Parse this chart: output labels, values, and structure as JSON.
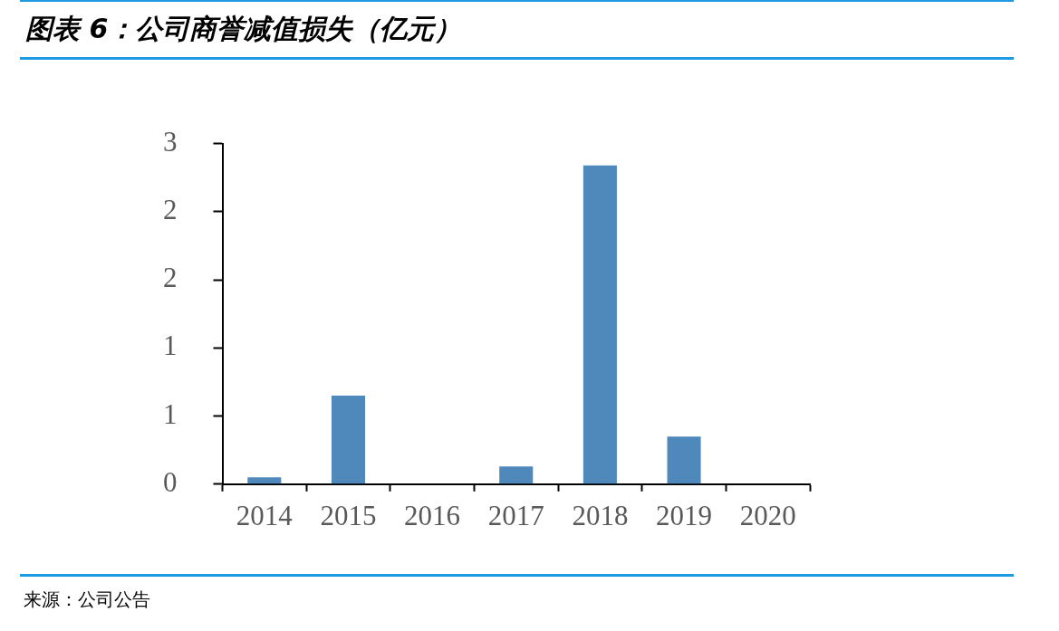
{
  "chart_data": {
    "type": "bar",
    "title": "图表 6：公司商誉减值损失（亿元）",
    "categories": [
      "2014",
      "2015",
      "2016",
      "2017",
      "2018",
      "2019",
      "2020"
    ],
    "values": [
      0.05,
      0.65,
      0,
      0.13,
      2.34,
      0.35,
      0
    ],
    "color": "#4f88bb",
    "ylim": [
      0,
      2.5
    ],
    "yticks": [
      0,
      {
        "value": 0.5,
        "label": "1"
      },
      {
        "value": 1,
        "label": "1"
      },
      {
        "value": 1.5,
        "label": "2"
      },
      {
        "value": 2,
        "label": "2"
      },
      {
        "value": 2.5,
        "label": "3"
      }
    ],
    "grid": false,
    "legend": false,
    "annotations": [
      "来源：公司公告"
    ]
  }
}
